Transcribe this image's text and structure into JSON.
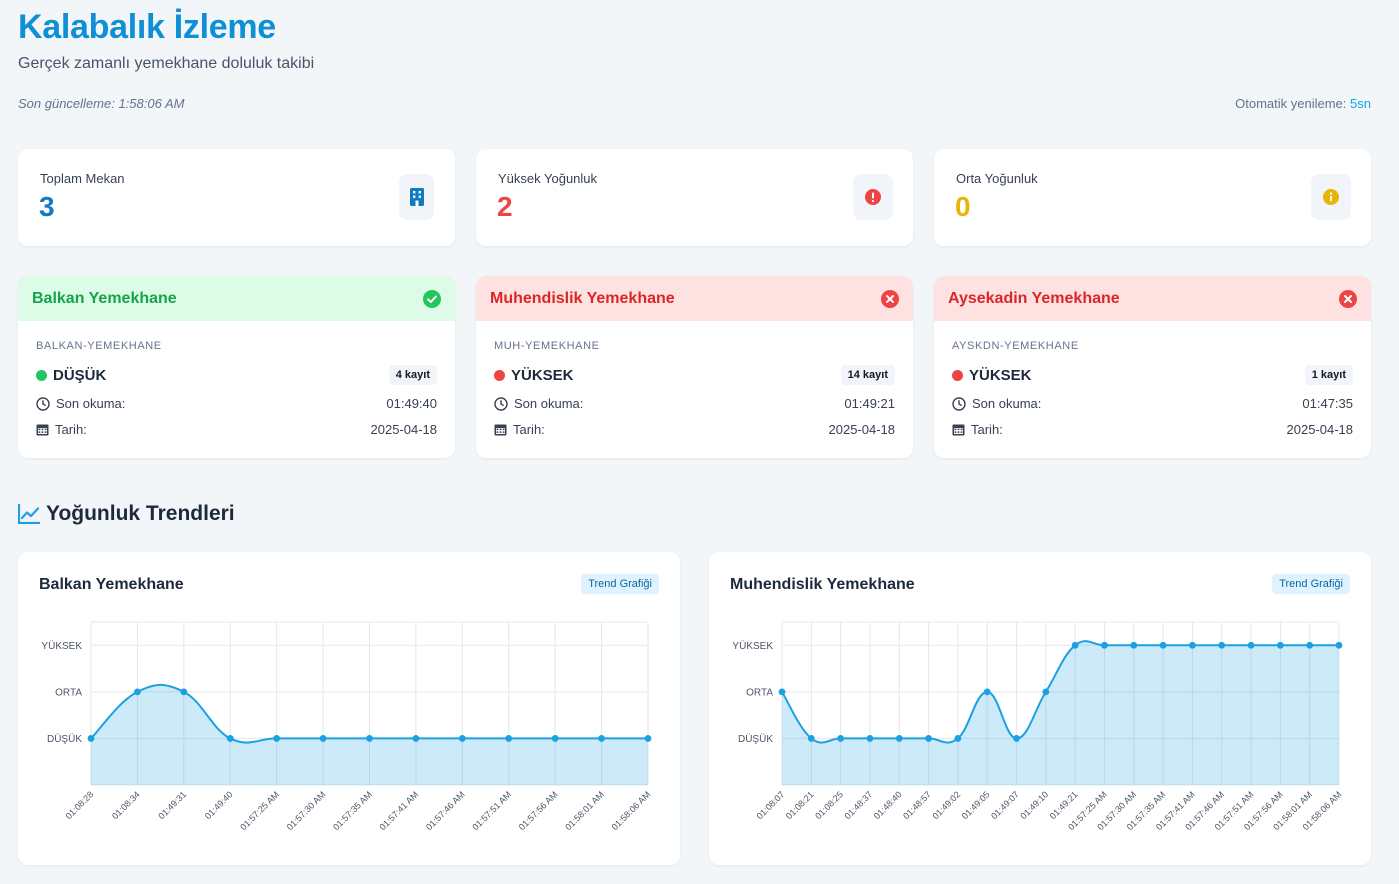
{
  "header": {
    "title": "Kalabalık İzleme",
    "subtitle": "Gerçek zamanlı yemekhane doluluk takibi",
    "last_update": "Son güncelleme: 1:58:06 AM",
    "auto_refresh_label": "Otomatik yenileme:",
    "auto_refresh_value": "5sn"
  },
  "stats": [
    {
      "label": "Toplam Mekan",
      "value": "3",
      "color": "#0f7cc2",
      "icon": "building-icon"
    },
    {
      "label": "Yüksek Yoğunluk",
      "value": "2",
      "color": "#ef4444",
      "icon": "alert-circle-icon"
    },
    {
      "label": "Orta Yoğunluk",
      "value": "0",
      "color": "#eab308",
      "icon": "info-circle-icon"
    }
  ],
  "venues": [
    {
      "name": "Balkan Yemekhane",
      "code": "BALKAN-YEMEKHANE",
      "status": "DÜŞÜK",
      "status_color": "#22c55e",
      "records": "4 kayıt",
      "last_read_label": "Son okuma:",
      "last_read": "01:49:40",
      "date_label": "Tarih:",
      "date": "2025-04-18",
      "header_style": "green",
      "header_icon": "check-circle-icon"
    },
    {
      "name": "Muhendislik Yemekhane",
      "code": "MUH-YEMEKHANE",
      "status": "YÜKSEK",
      "status_color": "#ef4444",
      "records": "14 kayıt",
      "last_read_label": "Son okuma:",
      "last_read": "01:49:21",
      "date_label": "Tarih:",
      "date": "2025-04-18",
      "header_style": "red",
      "header_icon": "x-circle-icon"
    },
    {
      "name": "Aysekadin Yemekhane",
      "code": "AYSKDN-YEMEKHANE",
      "status": "YÜKSEK",
      "status_color": "#ef4444",
      "records": "1 kayıt",
      "last_read_label": "Son okuma:",
      "last_read": "01:47:35",
      "date_label": "Tarih:",
      "date": "2025-04-18",
      "header_style": "red",
      "header_icon": "x-circle-icon"
    }
  ],
  "trends": {
    "title": "Yoğunluk Trendleri",
    "badge": "Trend Grafiği"
  },
  "chart_data": [
    {
      "type": "area",
      "title": "Balkan Yemekhane",
      "y_categories": [
        "DÜŞÜK",
        "ORTA",
        "YÜKSEK"
      ],
      "x": [
        "01:08:28",
        "01:08:34",
        "01:49:31",
        "01:49:40",
        "01:57:25 AM",
        "01:57:30 AM",
        "01:57:35 AM",
        "01:57:41 AM",
        "01:57:46 AM",
        "01:57:51 AM",
        "01:57:56 AM",
        "01:58:01 AM",
        "01:58:06 AM"
      ],
      "values": [
        1,
        2,
        2,
        1,
        1,
        1,
        1,
        1,
        1,
        1,
        1,
        1,
        1
      ],
      "ylim": [
        0,
        3.5
      ],
      "grid": true,
      "color": "#1ba1e2"
    },
    {
      "type": "area",
      "title": "Muhendislik Yemekhane",
      "y_categories": [
        "DÜŞÜK",
        "ORTA",
        "YÜKSEK"
      ],
      "x": [
        "01:08:07",
        "01:08:21",
        "01:08:25",
        "01:48:37",
        "01:48:40",
        "01:48:57",
        "01:49:02",
        "01:49:05",
        "01:49:07",
        "01:49:10",
        "01:49:21",
        "01:57:25 AM",
        "01:57:30 AM",
        "01:57:35 AM",
        "01:57:41 AM",
        "01:57:46 AM",
        "01:57:51 AM",
        "01:57:56 AM",
        "01:58:01 AM",
        "01:58:06 AM"
      ],
      "values": [
        2,
        1,
        1,
        1,
        1,
        1,
        1,
        2,
        1,
        2,
        3,
        3,
        3,
        3,
        3,
        3,
        3,
        3,
        3,
        3
      ],
      "ylim": [
        0,
        3.5
      ],
      "grid": true,
      "color": "#1ba1e2"
    }
  ]
}
